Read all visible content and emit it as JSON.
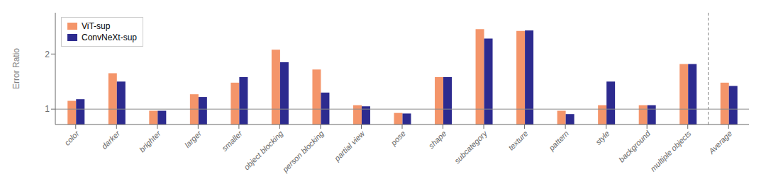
{
  "chart_data": {
    "type": "bar",
    "categories": [
      "color",
      "darker",
      "brighter",
      "larger",
      "smaller",
      "object blocking",
      "person blocking",
      "partial view",
      "pose",
      "shape",
      "subcategory",
      "texture",
      "pattern",
      "style",
      "background",
      "multiple objects",
      "Average"
    ],
    "series": [
      {
        "name": "ViT-sup",
        "color": "#F4956A",
        "values": [
          1.15,
          1.65,
          0.97,
          1.27,
          1.48,
          2.08,
          1.72,
          1.07,
          0.93,
          1.58,
          2.45,
          2.42,
          0.97,
          1.07,
          1.07,
          1.82,
          1.48
        ]
      },
      {
        "name": "ConvNeXt-sup",
        "color": "#2D2B8F",
        "values": [
          1.18,
          1.5,
          0.97,
          1.22,
          1.58,
          1.85,
          1.3,
          1.05,
          0.92,
          1.58,
          2.28,
          2.43,
          0.91,
          1.5,
          1.07,
          1.82,
          1.42
        ]
      }
    ],
    "ylabel": "Error Ratio",
    "ylim": [
      0.72,
      2.75
    ],
    "yticks": [
      1,
      2
    ],
    "hline": 1.0,
    "legend": "upper left",
    "grid": false
  }
}
